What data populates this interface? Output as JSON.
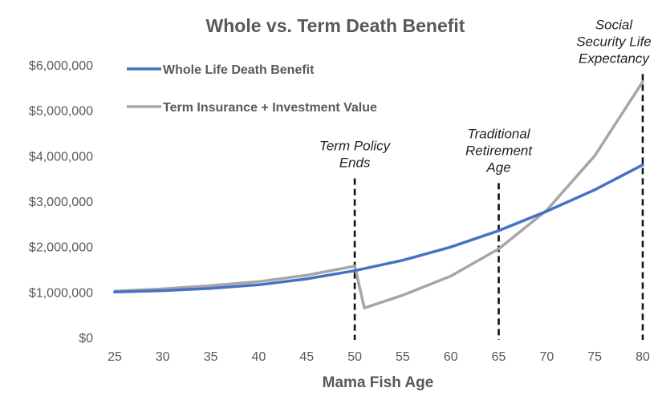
{
  "chart_data": {
    "type": "line",
    "title": "Whole vs. Term Death Benefit",
    "xlabel": "Mama Fish Age",
    "ylabel": "",
    "xlim": [
      25,
      80
    ],
    "ylim": [
      0,
      6000000
    ],
    "x_ticks": [
      25,
      30,
      35,
      40,
      45,
      50,
      55,
      60,
      65,
      70,
      75,
      80
    ],
    "x_tick_labels": [
      "25",
      "30",
      "35",
      "40",
      "45",
      "50",
      "55",
      "60",
      "65",
      "70",
      "75",
      "80"
    ],
    "y_ticks": [
      0,
      1000000,
      2000000,
      3000000,
      4000000,
      5000000,
      6000000
    ],
    "y_tick_labels": [
      "$0",
      "$1,000,000",
      "$2,000,000",
      "$3,000,000",
      "$4,000,000",
      "$5,000,000",
      "$6,000,000"
    ],
    "grid": false,
    "legend_position": "top-left",
    "series": [
      {
        "name": "Whole Life Death Benefit",
        "color": "#4472C4",
        "x": [
          25,
          30,
          35,
          40,
          45,
          50,
          55,
          60,
          65,
          70,
          75,
          80
        ],
        "values": [
          1000000,
          1030000,
          1080000,
          1160000,
          1290000,
          1470000,
          1700000,
          1990000,
          2350000,
          2780000,
          3250000,
          3800000
        ]
      },
      {
        "name": "Term Insurance + Investment Value",
        "color": "#A6A6A6",
        "x": [
          25,
          30,
          35,
          40,
          45,
          50,
          51,
          55,
          60,
          65,
          70,
          75,
          80
        ],
        "values": [
          1020000,
          1070000,
          1140000,
          1230000,
          1370000,
          1570000,
          650000,
          930000,
          1350000,
          1950000,
          2800000,
          4000000,
          5630000
        ]
      }
    ],
    "annotations": [
      {
        "x": 50,
        "lines": [
          "Term Policy",
          "Ends"
        ],
        "line_top_value": 3500000
      },
      {
        "x": 65,
        "lines": [
          "Traditional",
          "Retirement",
          "Age"
        ],
        "line_top_value": 3400000
      },
      {
        "x": 80,
        "lines": [
          "Social",
          "Security Life",
          "Expectancy"
        ],
        "line_top_value": 5800000
      }
    ]
  }
}
